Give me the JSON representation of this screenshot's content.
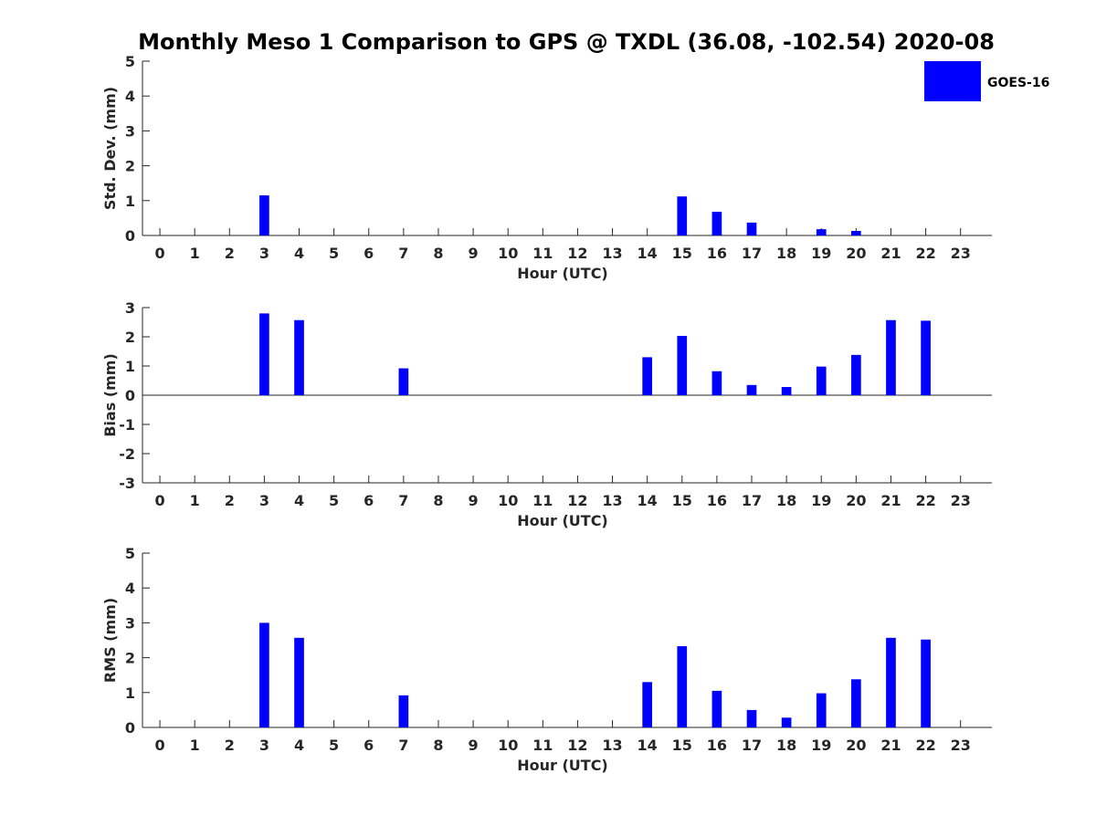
{
  "chart_data": [
    {
      "type": "bar",
      "title": "Monthly Meso 1 Comparison to GPS @ TXDL (36.08, -102.54) 2020-08",
      "xlabel": "Hour (UTC)",
      "ylabel": "Std. Dev. (mm)",
      "ylim": [
        0,
        5
      ],
      "yticks": [
        "0",
        "1",
        "2",
        "3",
        "4",
        "5"
      ],
      "categories": [
        "0",
        "1",
        "2",
        "3",
        "4",
        "5",
        "6",
        "7",
        "8",
        "9",
        "10",
        "11",
        "12",
        "13",
        "14",
        "15",
        "16",
        "17",
        "18",
        "19",
        "20",
        "21",
        "22",
        "23"
      ],
      "series": [
        {
          "name": "GOES-16",
          "color": "#0000ff",
          "values": [
            0,
            0,
            0,
            1.15,
            0,
            0,
            0,
            0,
            0,
            0,
            0,
            0,
            0,
            0,
            0,
            1.12,
            0.68,
            0.37,
            0,
            0.18,
            0.13,
            0,
            0,
            0
          ]
        }
      ],
      "legend": {
        "entries": [
          "GOES-16"
        ],
        "placement": "top-right"
      },
      "grid": false
    },
    {
      "type": "bar",
      "xlabel": "Hour (UTC)",
      "ylabel": "Bias (mm)",
      "ylim": [
        -3,
        3
      ],
      "yticks": [
        "-3",
        "-2",
        "-1",
        "0",
        "1",
        "2",
        "3"
      ],
      "categories": [
        "0",
        "1",
        "2",
        "3",
        "4",
        "5",
        "6",
        "7",
        "8",
        "9",
        "10",
        "11",
        "12",
        "13",
        "14",
        "15",
        "16",
        "17",
        "18",
        "19",
        "20",
        "21",
        "22",
        "23"
      ],
      "series": [
        {
          "name": "GOES-16",
          "color": "#0000ff",
          "values": [
            0,
            0,
            0,
            2.8,
            2.57,
            0,
            0,
            0.92,
            0,
            0,
            0,
            0,
            0,
            0,
            1.3,
            2.03,
            0.82,
            0.35,
            0.28,
            0.98,
            1.38,
            2.57,
            2.55,
            0
          ]
        }
      ],
      "grid": false
    },
    {
      "type": "bar",
      "xlabel": "Hour (UTC)",
      "ylabel": "RMS (mm)",
      "ylim": [
        0,
        5
      ],
      "yticks": [
        "0",
        "1",
        "2",
        "3",
        "4",
        "5"
      ],
      "categories": [
        "0",
        "1",
        "2",
        "3",
        "4",
        "5",
        "6",
        "7",
        "8",
        "9",
        "10",
        "11",
        "12",
        "13",
        "14",
        "15",
        "16",
        "17",
        "18",
        "19",
        "20",
        "21",
        "22",
        "23"
      ],
      "series": [
        {
          "name": "GOES-16",
          "color": "#0000ff",
          "values": [
            0,
            0,
            0,
            3.0,
            2.57,
            0,
            0,
            0.92,
            0,
            0,
            0,
            0,
            0,
            0,
            1.3,
            2.33,
            1.05,
            0.5,
            0.28,
            0.98,
            1.38,
            2.57,
            2.52,
            0
          ]
        }
      ],
      "grid": false
    }
  ]
}
